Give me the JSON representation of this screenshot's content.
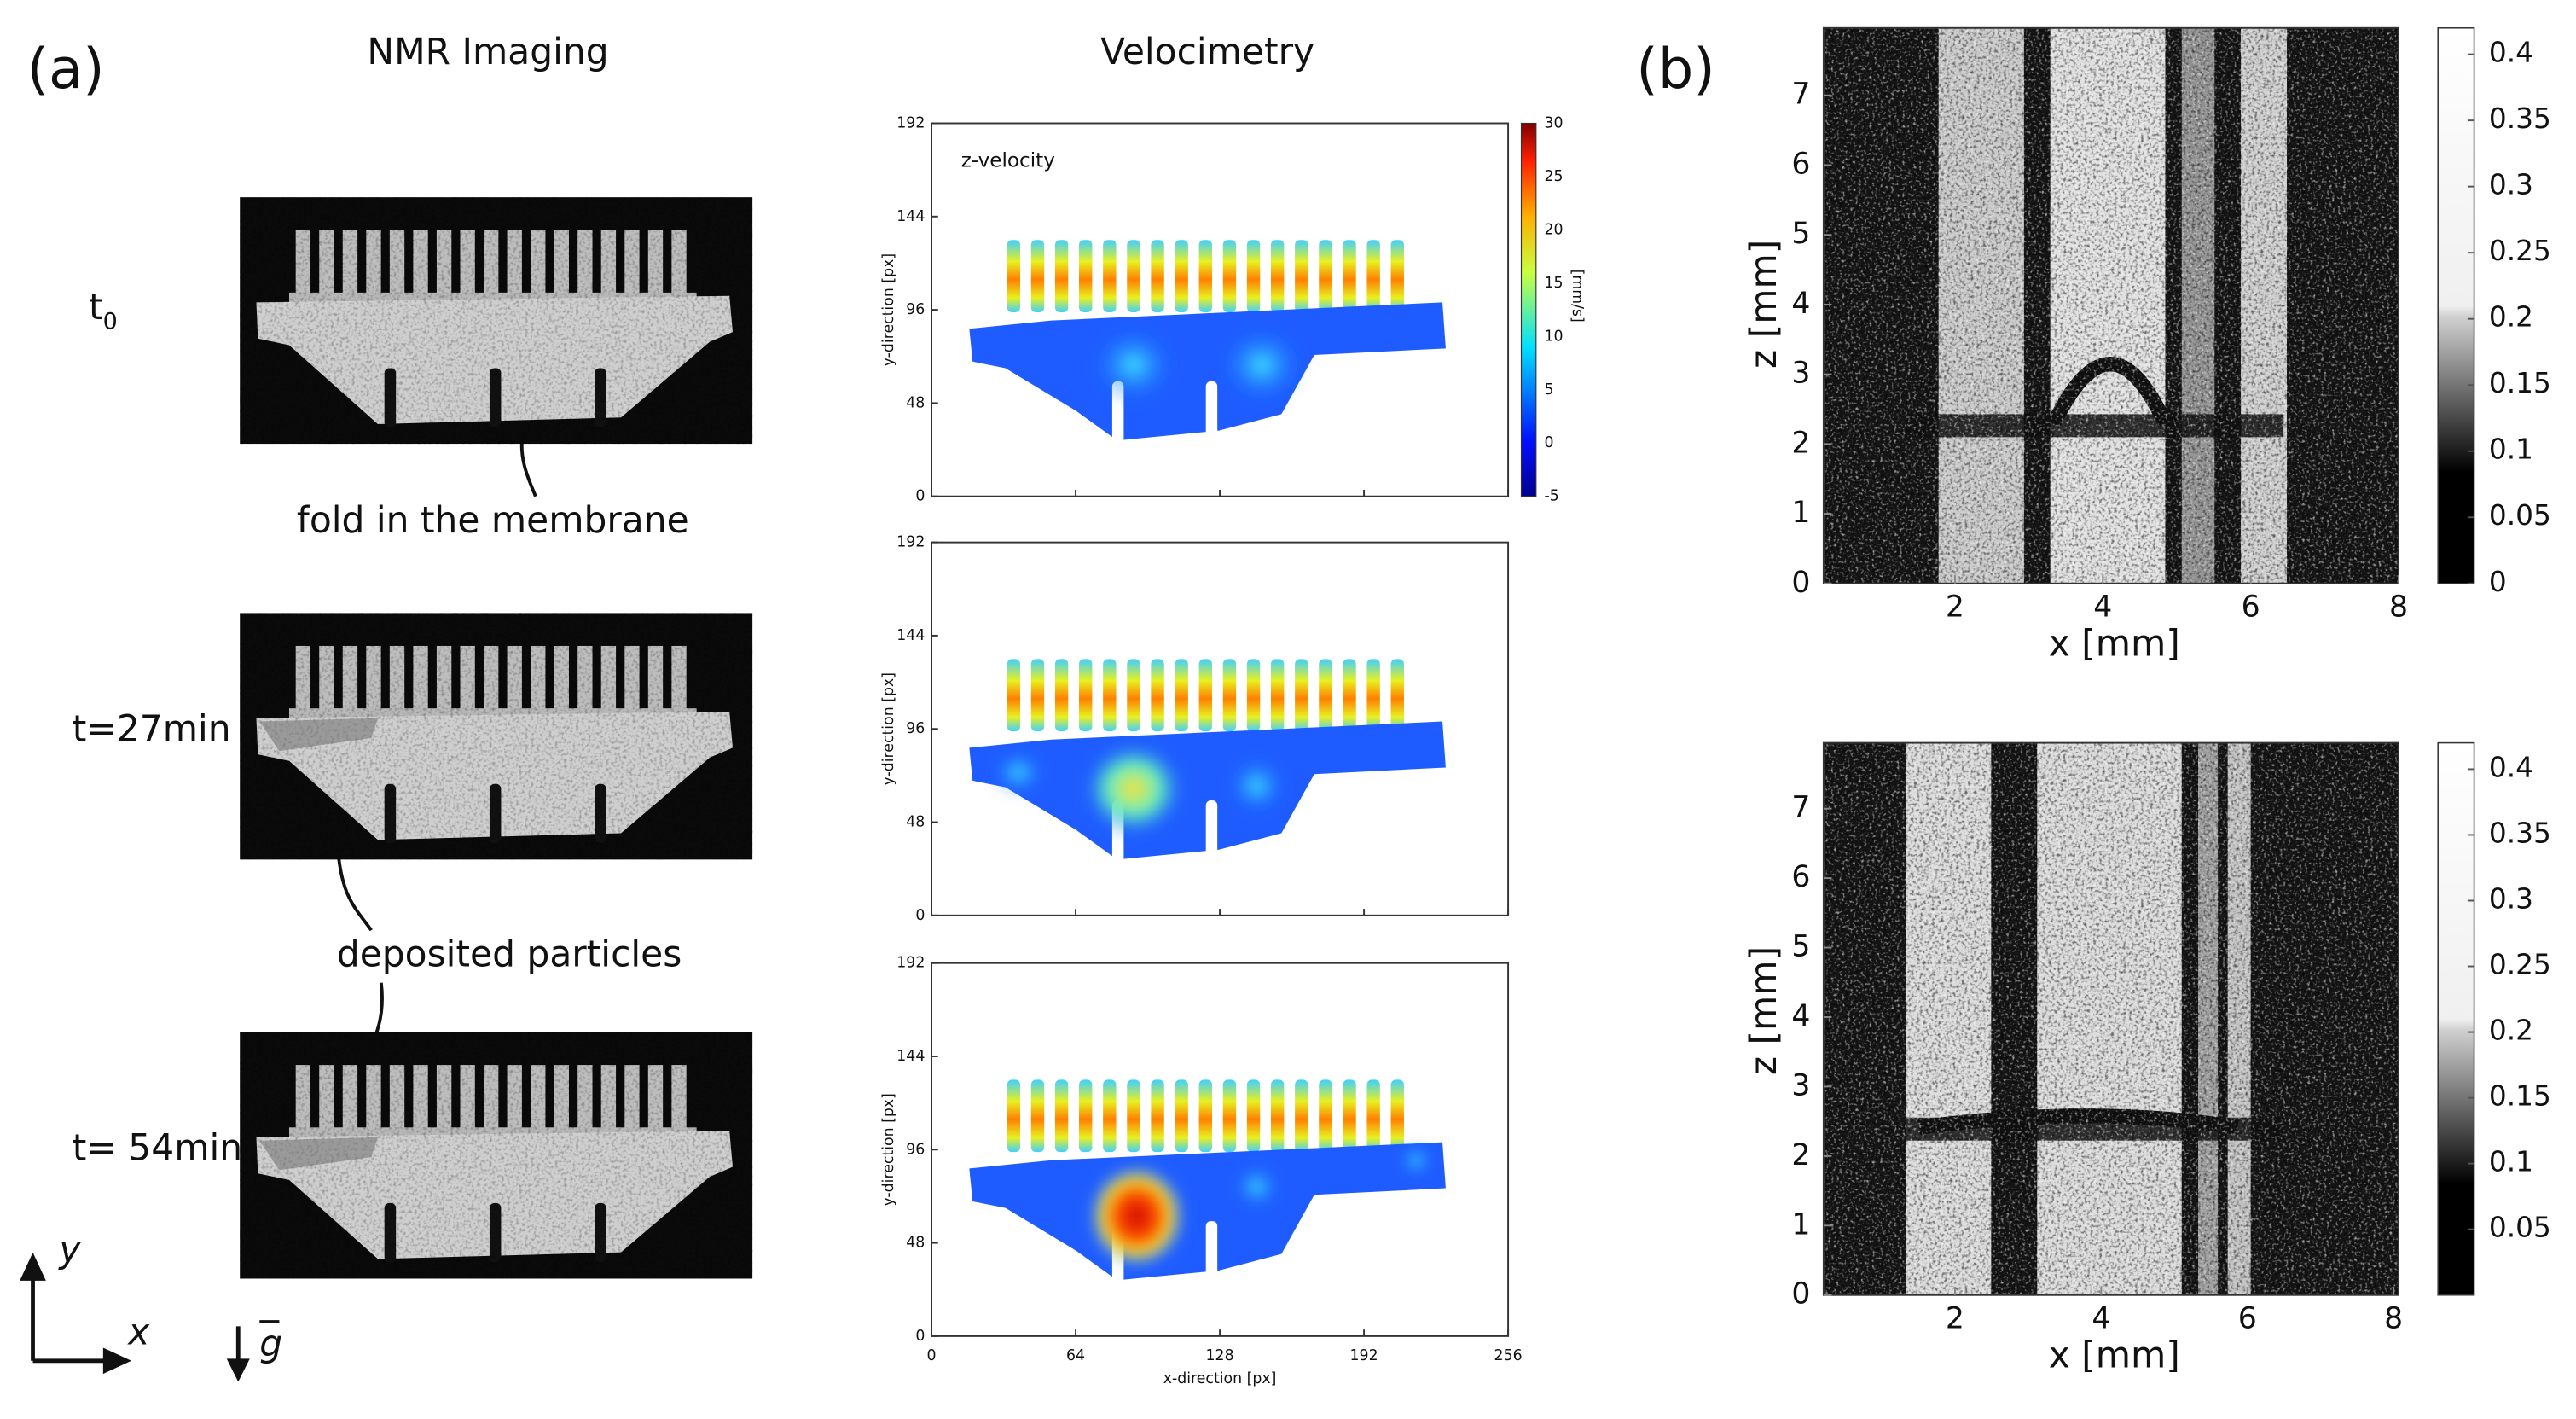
{
  "panel_a": {
    "label": "(a)",
    "columns": [
      "NMR Imaging",
      "Velocimetry"
    ],
    "rows": [
      {
        "time": "t",
        "time_subscript": "0"
      },
      {
        "time": "t=27min"
      },
      {
        "time": "t= 54min"
      }
    ],
    "annotations": [
      "fold in the membrane",
      "deposited particles"
    ],
    "velocity_plot": {
      "inset_label": "z-velocity",
      "y_label": "y-direction [px]",
      "x_label": "x-direction [px]",
      "yticks": [
        0,
        48,
        96,
        144,
        192
      ],
      "xticks": [
        0,
        64,
        128,
        192,
        256
      ],
      "colorbar_label": "[mm/s]",
      "colorbar_ticks": [
        -5,
        0,
        5,
        10,
        15,
        20,
        25,
        30
      ]
    },
    "axes": {
      "y": "y",
      "x": "x",
      "gravity": "g"
    }
  },
  "panel_b": {
    "label": "(b)",
    "plots": [
      {
        "x_label": "x [mm]",
        "y_label": "z [mm]",
        "xticks": [
          2,
          4,
          6,
          8
        ],
        "yticks": [
          0,
          1,
          2,
          3,
          4,
          5,
          6,
          7
        ],
        "colorbar_ticks": [
          0,
          0.05,
          0.1,
          0.15,
          0.2,
          0.25,
          0.3,
          0.35,
          0.4
        ]
      },
      {
        "x_label": "x [mm]",
        "y_label": "z [mm]",
        "xticks": [
          2,
          4,
          6,
          8
        ],
        "yticks": [
          0,
          1,
          2,
          3,
          4,
          5,
          6,
          7
        ],
        "colorbar_ticks": [
          0.05,
          0.1,
          0.15,
          0.2,
          0.25,
          0.3,
          0.35,
          0.4
        ]
      }
    ]
  }
}
